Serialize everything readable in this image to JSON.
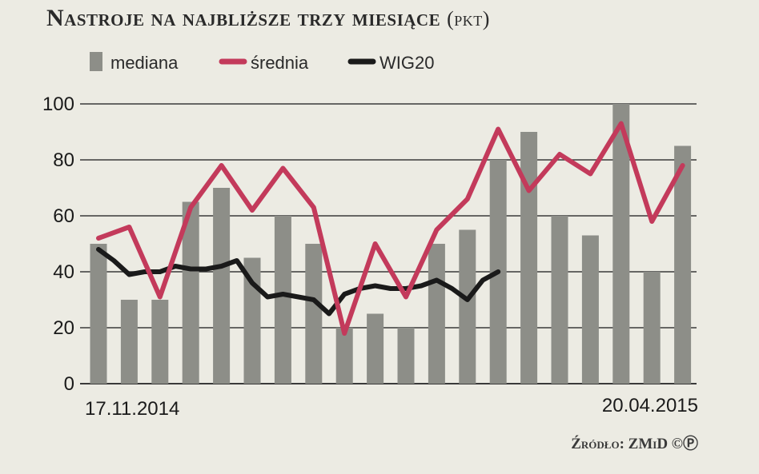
{
  "header": {
    "title": "Nastroje na najbliższe trzy miesiące",
    "unit": "(pkt)"
  },
  "legend": {
    "median_label": "mediana",
    "mean_label": "średnia",
    "wig_label": "WIG20"
  },
  "x_axis": {
    "start_label": "17.11.2014",
    "end_label": "20.04.2015"
  },
  "footer": {
    "source": "Źródło: ZMiD ©Ⓟ"
  },
  "colors": {
    "bar": "#8d8e88",
    "mean": "#c33a5b",
    "wig": "#1a1a1a",
    "grid": "#3a3a3a"
  },
  "chart_data": {
    "type": "bar",
    "title": "Nastroje na najbliższe trzy miesiące (pkt)",
    "x_start": "17.11.2014",
    "x_end": "20.04.2015",
    "ylim": [
      0,
      100
    ],
    "yticks": [
      0,
      20,
      40,
      60,
      80,
      100
    ],
    "grid": true,
    "legend_position": "top",
    "series": [
      {
        "name": "mediana",
        "type": "bar",
        "values": [
          50,
          30,
          30,
          65,
          70,
          45,
          60,
          50,
          20,
          25,
          20,
          50,
          55,
          80,
          90,
          60,
          53,
          100,
          40,
          85
        ]
      },
      {
        "name": "średnia",
        "type": "line",
        "values": [
          52,
          56,
          31,
          63,
          78,
          62,
          77,
          63,
          18,
          50,
          31,
          55,
          66,
          91,
          69,
          82,
          75,
          93,
          58,
          78
        ]
      },
      {
        "name": "WIG20",
        "type": "line",
        "points": [
          [
            0,
            48
          ],
          [
            0.5,
            44
          ],
          [
            1,
            39
          ],
          [
            1.5,
            40
          ],
          [
            2,
            40
          ],
          [
            2.5,
            42
          ],
          [
            3,
            41
          ],
          [
            3.5,
            41
          ],
          [
            4,
            42
          ],
          [
            4.5,
            44
          ],
          [
            5,
            36
          ],
          [
            5.5,
            31
          ],
          [
            6,
            32
          ],
          [
            6.5,
            31
          ],
          [
            7,
            30
          ],
          [
            7.5,
            25
          ],
          [
            8,
            32
          ],
          [
            8.5,
            34
          ],
          [
            9,
            35
          ],
          [
            9.5,
            34
          ],
          [
            10,
            34
          ],
          [
            10.5,
            35
          ],
          [
            11,
            37
          ],
          [
            11.5,
            34
          ],
          [
            12,
            30
          ],
          [
            12.5,
            37
          ],
          [
            13,
            40
          ]
        ]
      }
    ]
  }
}
